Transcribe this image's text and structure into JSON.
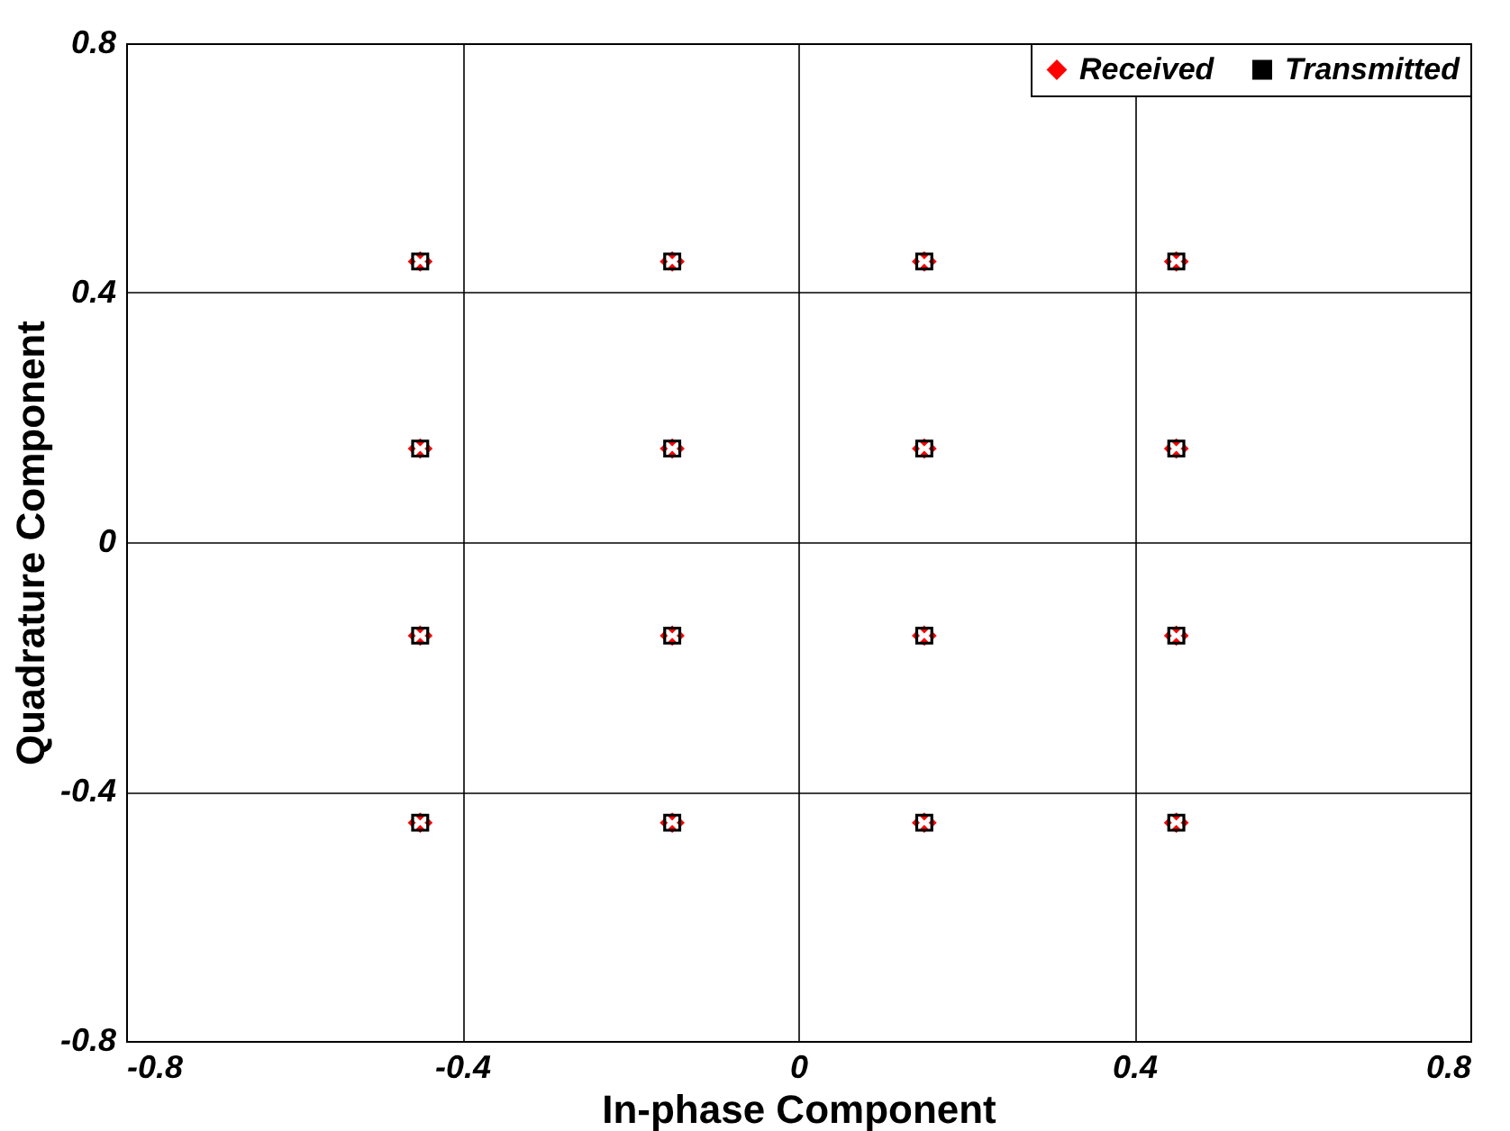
{
  "chart_data": {
    "type": "scatter",
    "xlabel": "In-phase Component",
    "ylabel": "Quadrature Component",
    "xlim": [
      -0.8,
      0.8
    ],
    "ylim": [
      -0.8,
      0.8
    ],
    "xticks": [
      -0.8,
      -0.4,
      0,
      0.4,
      0.8
    ],
    "yticks": [
      -0.8,
      -0.4,
      0,
      0.4,
      0.8
    ],
    "grid": true,
    "legend": "top right",
    "series": [
      {
        "name": "Received",
        "color": "#ff0000",
        "marker": "diamond",
        "x": [
          -0.46,
          -0.44,
          -0.45,
          -0.45,
          -0.16,
          -0.14,
          -0.15,
          -0.15,
          0.14,
          0.16,
          0.15,
          0.15,
          0.44,
          0.46,
          0.45,
          0.45,
          -0.46,
          -0.44,
          -0.45,
          -0.45,
          -0.16,
          -0.14,
          -0.15,
          -0.15,
          0.14,
          0.16,
          0.15,
          0.15,
          0.44,
          0.46,
          0.45,
          0.45,
          -0.46,
          -0.44,
          -0.45,
          -0.45,
          -0.16,
          -0.14,
          -0.15,
          -0.15,
          0.14,
          0.16,
          0.15,
          0.15,
          0.44,
          0.46,
          0.45,
          0.45,
          -0.46,
          -0.44,
          -0.45,
          -0.45,
          -0.16,
          -0.14,
          -0.15,
          -0.15,
          0.14,
          0.16,
          0.15,
          0.15,
          0.44,
          0.46,
          0.45,
          0.45
        ],
        "values": [
          0.45,
          0.45,
          0.46,
          0.44,
          0.45,
          0.45,
          0.46,
          0.44,
          0.45,
          0.45,
          0.46,
          0.44,
          0.45,
          0.45,
          0.46,
          0.44,
          0.15,
          0.15,
          0.16,
          0.14,
          0.15,
          0.15,
          0.16,
          0.14,
          0.15,
          0.15,
          0.16,
          0.14,
          0.15,
          0.15,
          0.16,
          0.14,
          -0.15,
          -0.15,
          -0.14,
          -0.16,
          -0.15,
          -0.15,
          -0.14,
          -0.16,
          -0.15,
          -0.15,
          -0.14,
          -0.16,
          -0.15,
          -0.15,
          -0.14,
          -0.16,
          -0.45,
          -0.45,
          -0.44,
          -0.46,
          -0.45,
          -0.45,
          -0.44,
          -0.46,
          -0.45,
          -0.45,
          -0.44,
          -0.46,
          -0.45,
          -0.45,
          -0.44,
          -0.46
        ]
      },
      {
        "name": "Transmitted",
        "color": "#000000",
        "marker": "square",
        "x": [
          -0.45,
          -0.15,
          0.15,
          0.45,
          -0.45,
          -0.15,
          0.15,
          0.45,
          -0.45,
          -0.15,
          0.15,
          0.45,
          -0.45,
          -0.15,
          0.15,
          0.45
        ],
        "values": [
          0.45,
          0.45,
          0.45,
          0.45,
          0.15,
          0.15,
          0.15,
          0.15,
          -0.15,
          -0.15,
          -0.15,
          -0.15,
          -0.45,
          -0.45,
          -0.45,
          -0.45
        ]
      }
    ]
  }
}
